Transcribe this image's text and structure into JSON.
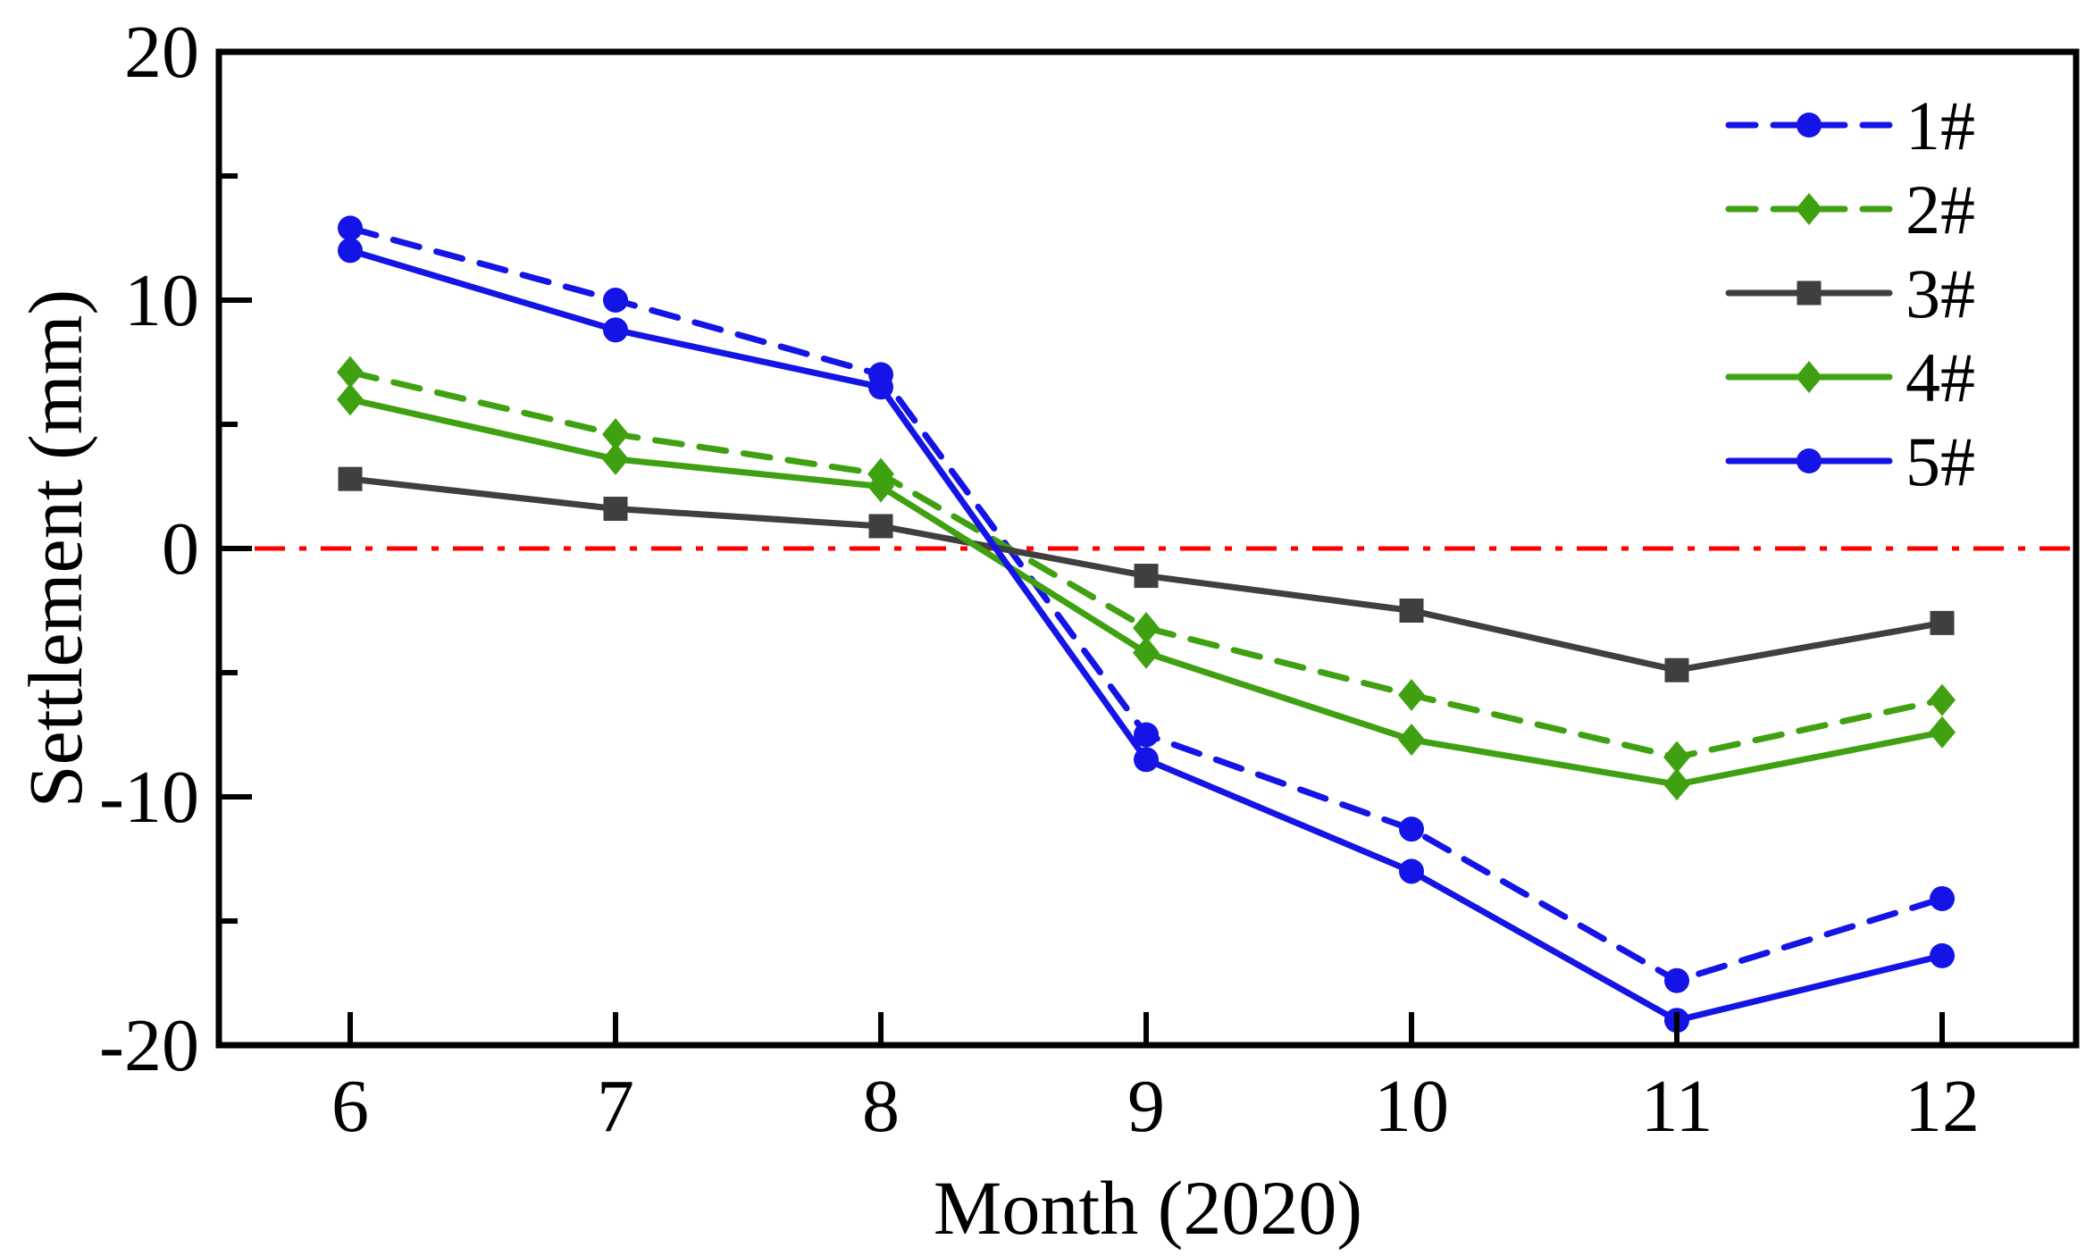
{
  "chart_data": {
    "type": "line",
    "title": "",
    "xlabel": "Month (2020)",
    "ylabel": "Settlement (mm)",
    "x": [
      6,
      7,
      8,
      9,
      10,
      11,
      12
    ],
    "x_tick_labels": [
      "6",
      "7",
      "8",
      "9",
      "10",
      "11",
      "12"
    ],
    "y_ticks": [
      20,
      10,
      0,
      -10,
      -20
    ],
    "y_tick_labels": [
      "20",
      "10",
      "0",
      "-10",
      "-20"
    ],
    "y_minor_ticks": [
      15,
      5,
      -5,
      -15
    ],
    "xlim": [
      5.505,
      12.505
    ],
    "ylim": [
      -20,
      20
    ],
    "grid": false,
    "legend_position": "top-right-inside",
    "reference_line": {
      "y": 0,
      "color": "#FF0000",
      "style": "dash-dot"
    },
    "series": [
      {
        "name": "1#",
        "color": "#1414E6",
        "line_style": "dashed",
        "marker": "circle",
        "values": [
          12.9,
          10.0,
          7.0,
          -7.5,
          -11.3,
          -17.4,
          -14.1
        ]
      },
      {
        "name": "2#",
        "color": "#3FA111",
        "line_style": "dashed",
        "marker": "diamond",
        "values": [
          7.1,
          4.6,
          3.0,
          -3.2,
          -5.9,
          -8.4,
          -6.1
        ]
      },
      {
        "name": "3#",
        "color": "#3F3F3F",
        "line_style": "solid",
        "marker": "square",
        "values": [
          2.8,
          1.6,
          0.9,
          -1.1,
          -2.5,
          -4.9,
          -3.0
        ]
      },
      {
        "name": "4#",
        "color": "#3FA111",
        "line_style": "solid",
        "marker": "diamond",
        "values": [
          6.0,
          3.6,
          2.5,
          -4.2,
          -7.7,
          -9.5,
          -7.4
        ]
      },
      {
        "name": "5#",
        "color": "#1414E6",
        "line_style": "solid",
        "marker": "circle",
        "values": [
          12.0,
          8.8,
          6.5,
          -8.5,
          -13.0,
          -19.0,
          -16.4
        ]
      }
    ],
    "axis_color": "#000000"
  }
}
